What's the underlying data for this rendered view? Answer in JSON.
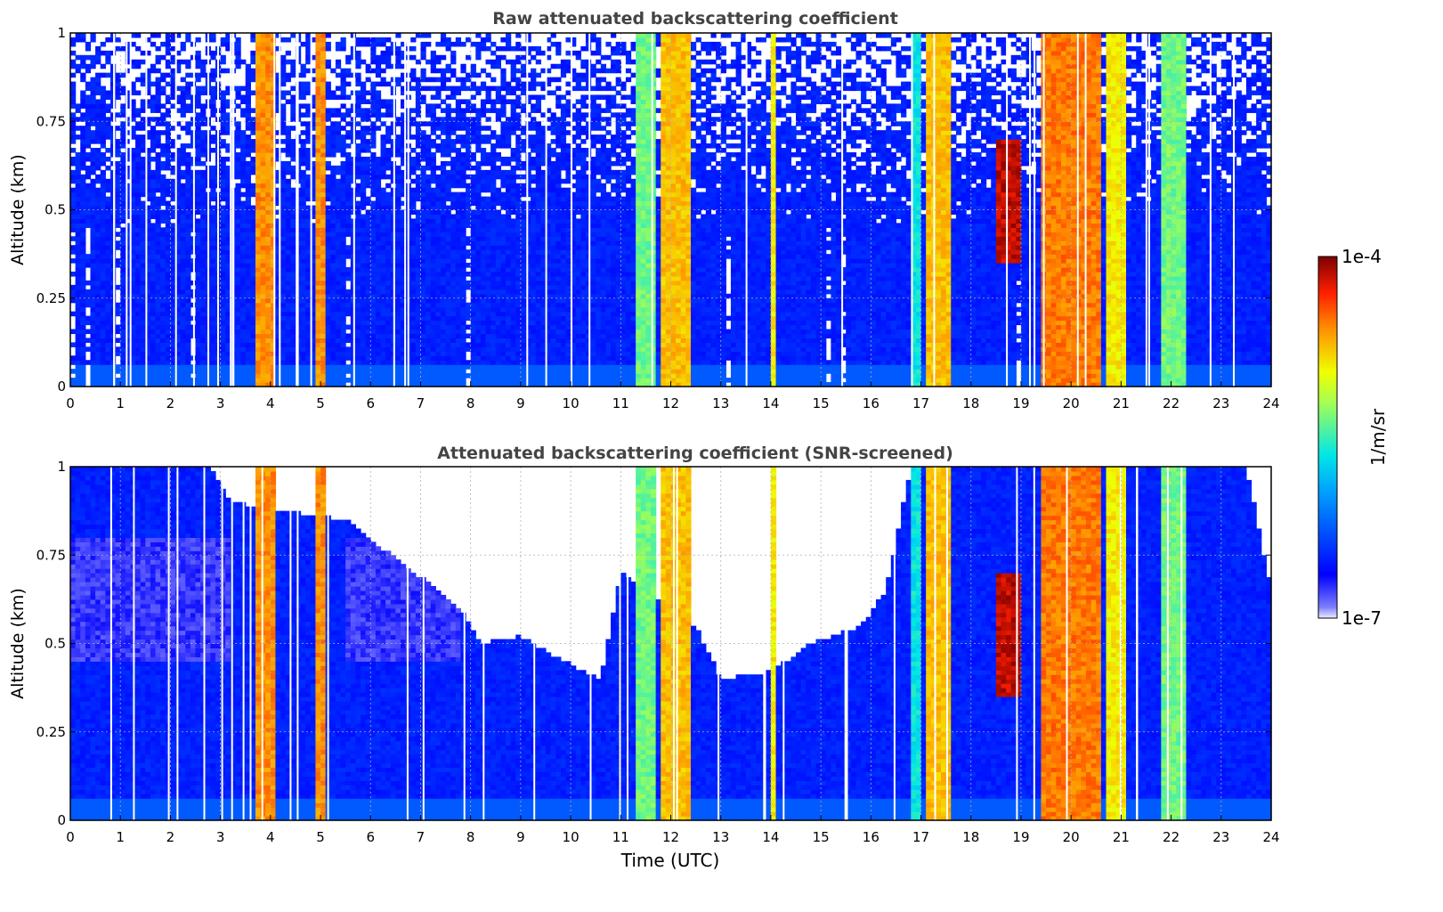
{
  "figure": {
    "xlabel": "Time (UTC)",
    "colorbar": {
      "label": "1/m/sr",
      "max_label": "1e-4",
      "min_label": "1e-7",
      "scale": "log",
      "range": [
        1e-07,
        0.0001
      ],
      "colormap": "jet"
    }
  },
  "chart_data": [
    {
      "type": "heatmap",
      "title": "Raw attenuated backscattering coefficient",
      "ylabel": "Altitude (km)",
      "xlim": [
        0,
        24
      ],
      "ylim": [
        0,
        1
      ],
      "xticks": [
        "0",
        "1",
        "2",
        "3",
        "4",
        "5",
        "6",
        "7",
        "8",
        "9",
        "10",
        "11",
        "12",
        "13",
        "14",
        "15",
        "16",
        "17",
        "18",
        "19",
        "20",
        "21",
        "22",
        "23",
        "24"
      ],
      "yticks": [
        "0",
        "0.25",
        "0.5",
        "0.75",
        "1"
      ],
      "grid": true,
      "screened": false,
      "intensity_scale": "log10 of 1/m/sr, 0 = 1e-7, 1 = 1e-4",
      "features": [
        {
          "x": [
            3.75,
            4.1
          ],
          "y": [
            0,
            1
          ],
          "level": 0.8
        },
        {
          "x": [
            4.9,
            5.05
          ],
          "y": [
            0,
            1
          ],
          "level": 0.8
        },
        {
          "x": [
            11.35,
            11.7
          ],
          "y": [
            0,
            1
          ],
          "level": 0.55
        },
        {
          "x": [
            11.85,
            12.35
          ],
          "y": [
            0,
            1
          ],
          "level": 0.75
        },
        {
          "x": [
            14.05,
            14.12
          ],
          "y": [
            0,
            1
          ],
          "level": 0.7
        },
        {
          "x": [
            16.8,
            17.0
          ],
          "y": [
            0,
            1
          ],
          "level": 0.45
        },
        {
          "x": [
            17.15,
            17.55
          ],
          "y": [
            0,
            1
          ],
          "level": 0.75
        },
        {
          "x": [
            18.5,
            19.0
          ],
          "y": [
            0.35,
            0.7
          ],
          "level": 0.95
        },
        {
          "x": [
            19.45,
            20.55
          ],
          "y": [
            0,
            1
          ],
          "level": 0.82
        },
        {
          "x": [
            20.7,
            21.1
          ],
          "y": [
            0,
            1
          ],
          "level": 0.7
        },
        {
          "x": [
            21.8,
            22.3
          ],
          "y": [
            0,
            1
          ],
          "level": 0.55
        }
      ]
    },
    {
      "type": "heatmap",
      "title": "Attenuated backscattering coefficient (SNR-screened)",
      "ylabel": "Altitude (km)",
      "xlabel": "Time (UTC)",
      "xlim": [
        0,
        24
      ],
      "ylim": [
        0,
        1
      ],
      "xticks": [
        "0",
        "1",
        "2",
        "3",
        "4",
        "5",
        "6",
        "7",
        "8",
        "9",
        "10",
        "11",
        "12",
        "13",
        "14",
        "15",
        "16",
        "17",
        "18",
        "19",
        "20",
        "21",
        "22",
        "23",
        "24"
      ],
      "yticks": [
        "0",
        "0.25",
        "0.5",
        "0.75",
        "1"
      ],
      "grid": true,
      "screened": true,
      "intensity_scale": "log10 of 1/m/sr, 0 = 1e-7, 1 = 1e-4",
      "features": [
        {
          "x": [
            3.75,
            4.1
          ],
          "y": [
            0,
            1
          ],
          "level": 0.8
        },
        {
          "x": [
            4.9,
            5.05
          ],
          "y": [
            0,
            1
          ],
          "level": 0.8
        },
        {
          "x": [
            11.35,
            11.7
          ],
          "y": [
            0,
            1
          ],
          "level": 0.55
        },
        {
          "x": [
            11.85,
            12.35
          ],
          "y": [
            0,
            1
          ],
          "level": 0.75
        },
        {
          "x": [
            14.05,
            14.12
          ],
          "y": [
            0,
            1
          ],
          "level": 0.7
        },
        {
          "x": [
            16.8,
            17.0
          ],
          "y": [
            0,
            1
          ],
          "level": 0.45
        },
        {
          "x": [
            17.15,
            17.55
          ],
          "y": [
            0,
            1
          ],
          "level": 0.75
        },
        {
          "x": [
            18.5,
            19.0
          ],
          "y": [
            0.35,
            0.7
          ],
          "level": 0.95
        },
        {
          "x": [
            19.45,
            20.55
          ],
          "y": [
            0,
            1
          ],
          "level": 0.82
        },
        {
          "x": [
            20.7,
            21.1
          ],
          "y": [
            0,
            1
          ],
          "level": 0.7
        },
        {
          "x": [
            21.8,
            22.3
          ],
          "y": [
            0,
            1
          ],
          "level": 0.55
        }
      ],
      "valid_signal_top_km": [
        {
          "x": 0,
          "y": 1.0
        },
        {
          "x": 2.8,
          "y": 1.0
        },
        {
          "x": 3.2,
          "y": 0.9
        },
        {
          "x": 5.5,
          "y": 0.85
        },
        {
          "x": 7.8,
          "y": 0.6
        },
        {
          "x": 8.2,
          "y": 0.5
        },
        {
          "x": 9.0,
          "y": 0.52
        },
        {
          "x": 10.0,
          "y": 0.44
        },
        {
          "x": 10.6,
          "y": 0.4
        },
        {
          "x": 11.0,
          "y": 0.7
        },
        {
          "x": 12.5,
          "y": 0.55
        },
        {
          "x": 13.0,
          "y": 0.4
        },
        {
          "x": 14.0,
          "y": 0.42
        },
        {
          "x": 14.8,
          "y": 0.5
        },
        {
          "x": 15.8,
          "y": 0.55
        },
        {
          "x": 16.3,
          "y": 0.65
        },
        {
          "x": 16.8,
          "y": 1.0
        },
        {
          "x": 23.5,
          "y": 1.0
        },
        {
          "x": 24,
          "y": 0.65
        }
      ]
    }
  ]
}
